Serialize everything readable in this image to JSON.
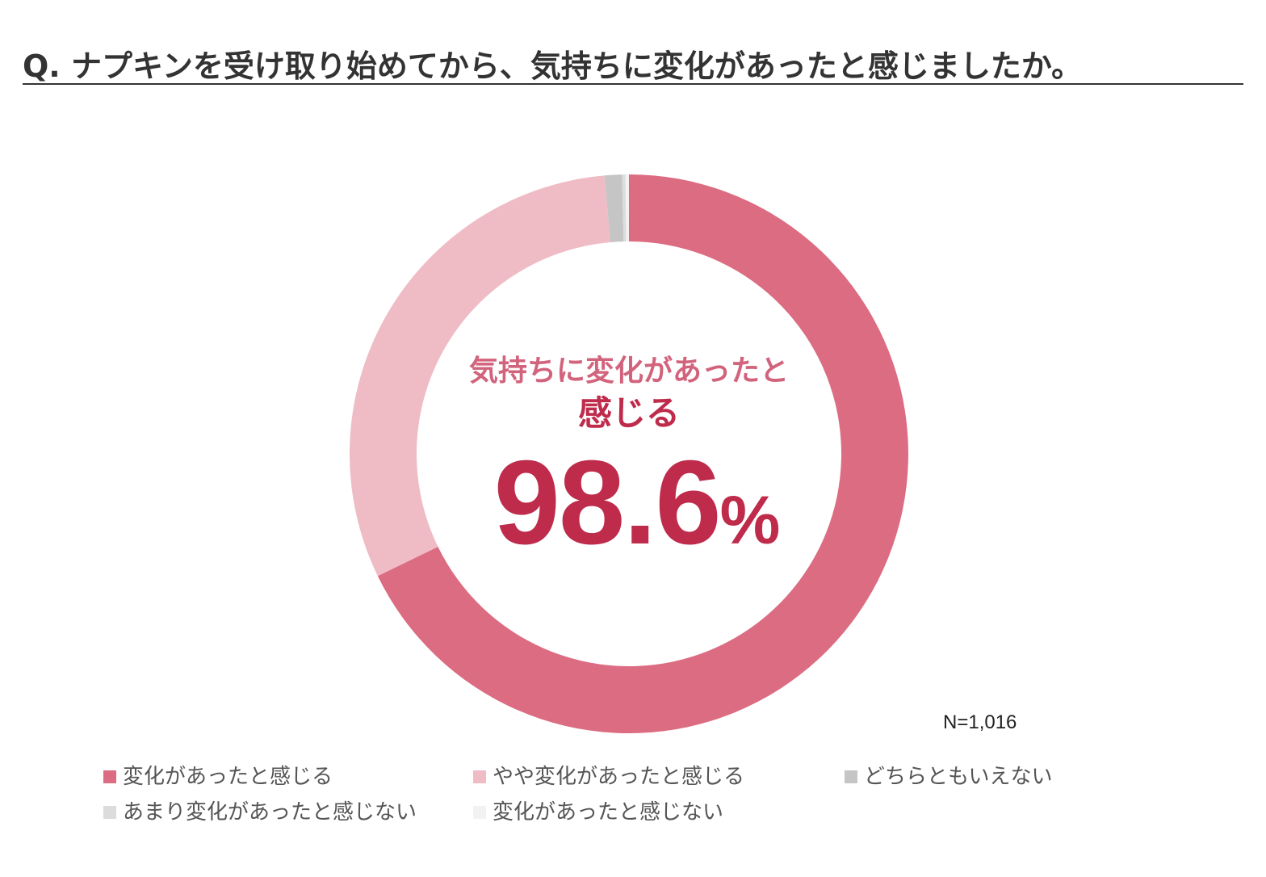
{
  "title": "Q. ナプキンを受け取り始めてから、気持ちに変化があったと感じましたか。",
  "center": {
    "line1": "気持ちに変化があったと",
    "line2": "感じる",
    "value": "98.6",
    "unit": "%"
  },
  "sample_size": "N=1,016",
  "chart_data": {
    "type": "pie",
    "title": "Q. ナプキンを受け取り始めてから、気持ちに変化があったと感じましたか。",
    "categories": [
      "変化があったと感じる",
      "やや変化があったと感じる",
      "どちらともいえない",
      "あまり変化があったと感じない",
      "変化があったと感じない"
    ],
    "values": [
      67.8,
      30.8,
      1.0,
      0.2,
      0.2
    ],
    "colors": [
      "#dc6c81",
      "#efbcc6",
      "#c5c5c5",
      "#dcdcdc",
      "#f2f2f2"
    ],
    "donut": true,
    "legend_position": "bottom"
  }
}
